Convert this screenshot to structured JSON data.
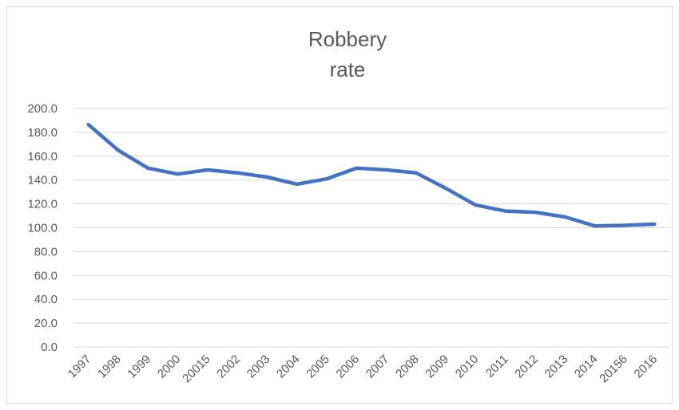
{
  "chart_data": {
    "type": "line",
    "title_lines": [
      "Robbery",
      "rate"
    ],
    "categories": [
      "1997",
      "1998",
      "1999",
      "2000",
      "20015",
      "2002",
      "2003",
      "2004",
      "2005",
      "2006",
      "2007",
      "2008",
      "2009",
      "2010",
      "2011",
      "2012",
      "2013",
      "2014",
      "20156",
      "2016"
    ],
    "series": [
      {
        "values": [
          186.5,
          165.0,
          150.0,
          145.0,
          148.5,
          146.0,
          142.5,
          136.5,
          141.0,
          150.0,
          148.5,
          146.0,
          133.0,
          119.0,
          114.0,
          113.0,
          109.0,
          101.5,
          102.0,
          103.0
        ]
      }
    ],
    "y_ticks": [
      "0.0",
      "20.0",
      "40.0",
      "60.0",
      "80.0",
      "100.0",
      "120.0",
      "140.0",
      "160.0",
      "180.0",
      "200.0"
    ],
    "ylim": [
      0,
      200
    ],
    "grid": true,
    "line_color": "#4472c4",
    "grid_color": "#d9d9d9",
    "text_color": "#595959"
  }
}
